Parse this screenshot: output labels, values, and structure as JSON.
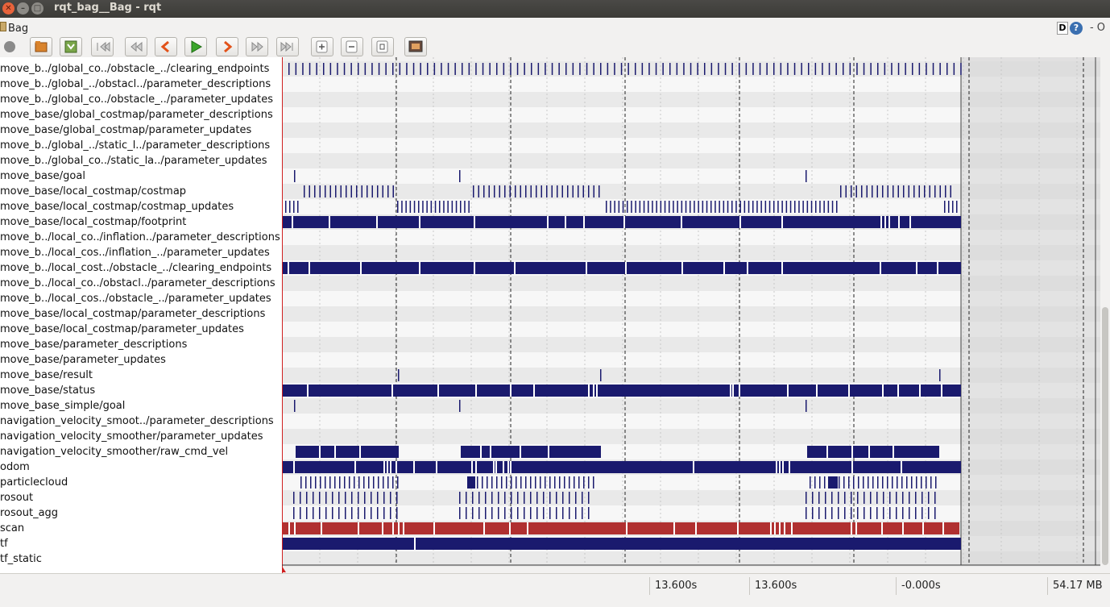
{
  "window": {
    "title": "rqt_bag__Bag - rqt"
  },
  "plugin": {
    "title": "Bag",
    "d_label": "D",
    "help_label": "?",
    "float_label": "- O"
  },
  "toolbar_icons": [
    "record-icon",
    "open-icon",
    "save-icon",
    "go-to-start-icon",
    "rewind-icon",
    "step-back-icon",
    "play-icon",
    "step-forward-icon",
    "fast-forward-icon",
    "go-to-end-icon",
    "zoom-in-icon",
    "zoom-out-icon",
    "zoom-reset-icon",
    "thumbnails-icon"
  ],
  "topics": [
    "move_b../global_co../obstacle_../clearing_endpoints",
    "move_b../global_../obstacl../parameter_descriptions",
    "move_b../global_co../obstacle_../parameter_updates",
    "move_base/global_costmap/parameter_descriptions",
    "move_base/global_costmap/parameter_updates",
    "move_b../global_../static_l../parameter_descriptions",
    "move_b../global_co../static_la../parameter_updates",
    "move_base/goal",
    "move_base/local_costmap/costmap",
    "move_base/local_costmap/costmap_updates",
    "move_base/local_costmap/footprint",
    "move_b../local_co../inflation../parameter_descriptions",
    "move_b../local_cos../inflation_../parameter_updates",
    "move_b../local_cost../obstacle_../clearing_endpoints",
    "move_b../local_co../obstacl../parameter_descriptions",
    "move_b../local_cos../obstacle_../parameter_updates",
    "move_base/local_costmap/parameter_descriptions",
    "move_base/local_costmap/parameter_updates",
    "move_base/parameter_descriptions",
    "move_base/parameter_updates",
    "move_base/result",
    "move_base/status",
    "move_base_simple/goal",
    "navigation_velocity_smoot../parameter_descriptions",
    "navigation_velocity_smoother/parameter_updates",
    "navigation_velocity_smoother/raw_cmd_vel",
    "odom",
    "particlecloud",
    "rosout",
    "rosout_agg",
    "scan",
    "tf",
    "tf_static"
  ],
  "status": {
    "start": "13.600s",
    "current": "13.600s",
    "duration": "-0.000s",
    "size": "54.17 MB"
  },
  "colors": {
    "message": "#1a1a6e",
    "scan": "#b03030",
    "grid": "#b8b8b8"
  }
}
